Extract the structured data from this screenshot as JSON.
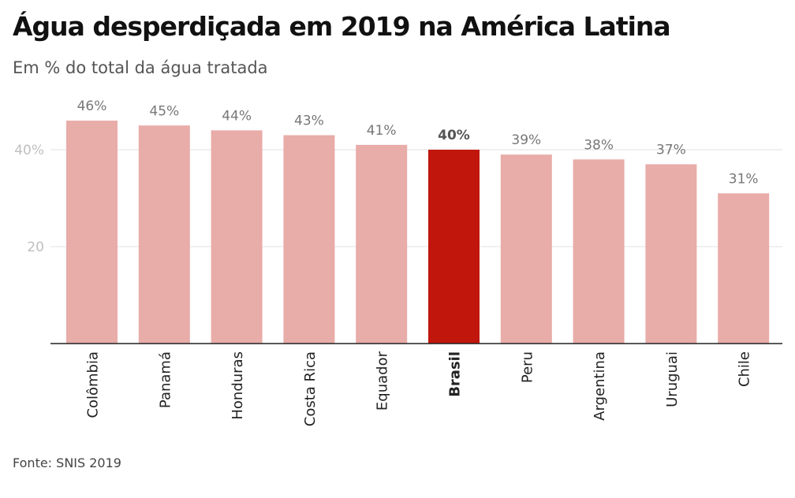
{
  "chart_data": {
    "type": "bar",
    "title": "Água desperdiçada em 2019 na América Latina",
    "subtitle": "Em % do total da água tratada",
    "source": "Fonte: SNIS 2019",
    "categories": [
      "Colômbia",
      "Panamá",
      "Honduras",
      "Costa Rica",
      "Equador",
      "Brasil",
      "Peru",
      "Argentina",
      "Uruguai",
      "Chile"
    ],
    "values": [
      46,
      45,
      44,
      43,
      41,
      40,
      39,
      38,
      37,
      31
    ],
    "value_labels": [
      "46%",
      "45%",
      "44%",
      "43%",
      "41%",
      "40%",
      "39%",
      "38%",
      "37%",
      "31%"
    ],
    "highlight": "Brasil",
    "ylim": [
      0,
      50
    ],
    "yticks": [
      20,
      40
    ],
    "ytick_labels": [
      "20",
      "40%"
    ],
    "xlabel": "",
    "ylabel": "",
    "grid": true,
    "colors": {
      "bar": "#e8aca9",
      "highlight_bar": "#c0160c",
      "grid": "#e2e2e2",
      "axis": "#222222"
    }
  }
}
